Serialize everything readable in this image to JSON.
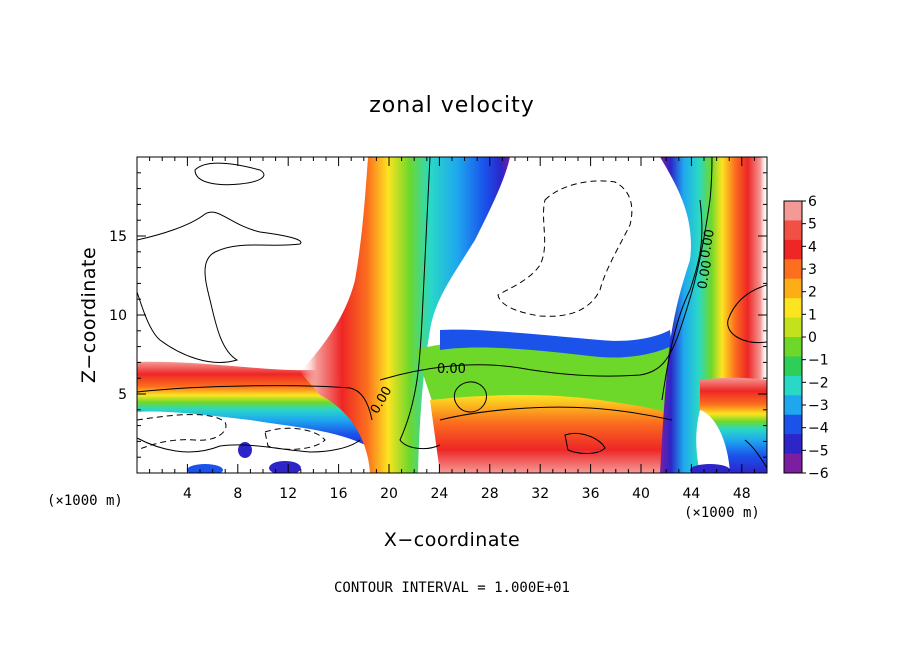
{
  "chart_data": {
    "type": "heatmap",
    "title": "zonal velocity",
    "xlabel": "X−coordinate",
    "ylabel": "Z−coordinate",
    "x_unit": "(×1000 m)",
    "x_unit_right": "(×1000 m)",
    "xlim": [
      0,
      50
    ],
    "ylim": [
      0,
      20
    ],
    "x_ticks": [
      4,
      8,
      12,
      16,
      20,
      24,
      28,
      32,
      36,
      40,
      44,
      48
    ],
    "y_ticks": [
      5,
      10,
      15
    ],
    "colorbar": {
      "ticks": [
        "6",
        "5",
        "4",
        "3",
        "2",
        "1",
        "0",
        "−1",
        "−2",
        "−3",
        "−4",
        "−5",
        "−6"
      ],
      "colors": [
        "#f49a96",
        "#f35045",
        "#ee2626",
        "#fb6f1e",
        "#fdae16",
        "#fde421",
        "#c4e21b",
        "#6ed82a",
        "#2ecf58",
        "#2ad8c6",
        "#1ea7ef",
        "#1a52ea",
        "#2d24c9",
        "#7b1fa0"
      ]
    },
    "contour_labels": [
      "0.00",
      "0.00",
      "0.00",
      "0.00"
    ],
    "contour_interval_text": "CONTOUR INTERVAL = 1.000E+01",
    "fields": [
      {
        "name": "inversion-layer",
        "band": [
          [
            0,
            6.3
          ],
          [
            10,
            6.0
          ],
          [
            17,
            6.4
          ],
          [
            20,
            5.6
          ],
          [
            24,
            5.2
          ],
          [
            30,
            5.0
          ],
          [
            38,
            5.0
          ],
          [
            44,
            5.2
          ],
          [
            50,
            5.8
          ]
        ]
      },
      {
        "name": "left-updraft",
        "path": [
          [
            14,
            5.5
          ],
          [
            17,
            6.2
          ],
          [
            19,
            8.5
          ],
          [
            20.5,
            12
          ],
          [
            21,
            16
          ],
          [
            21.5,
            20
          ]
        ]
      },
      {
        "name": "right-updraft",
        "path": [
          [
            50,
            20
          ],
          [
            47,
            16
          ],
          [
            45,
            13
          ],
          [
            44,
            10
          ],
          [
            43,
            6
          ],
          [
            43,
            0
          ]
        ]
      }
    ]
  }
}
